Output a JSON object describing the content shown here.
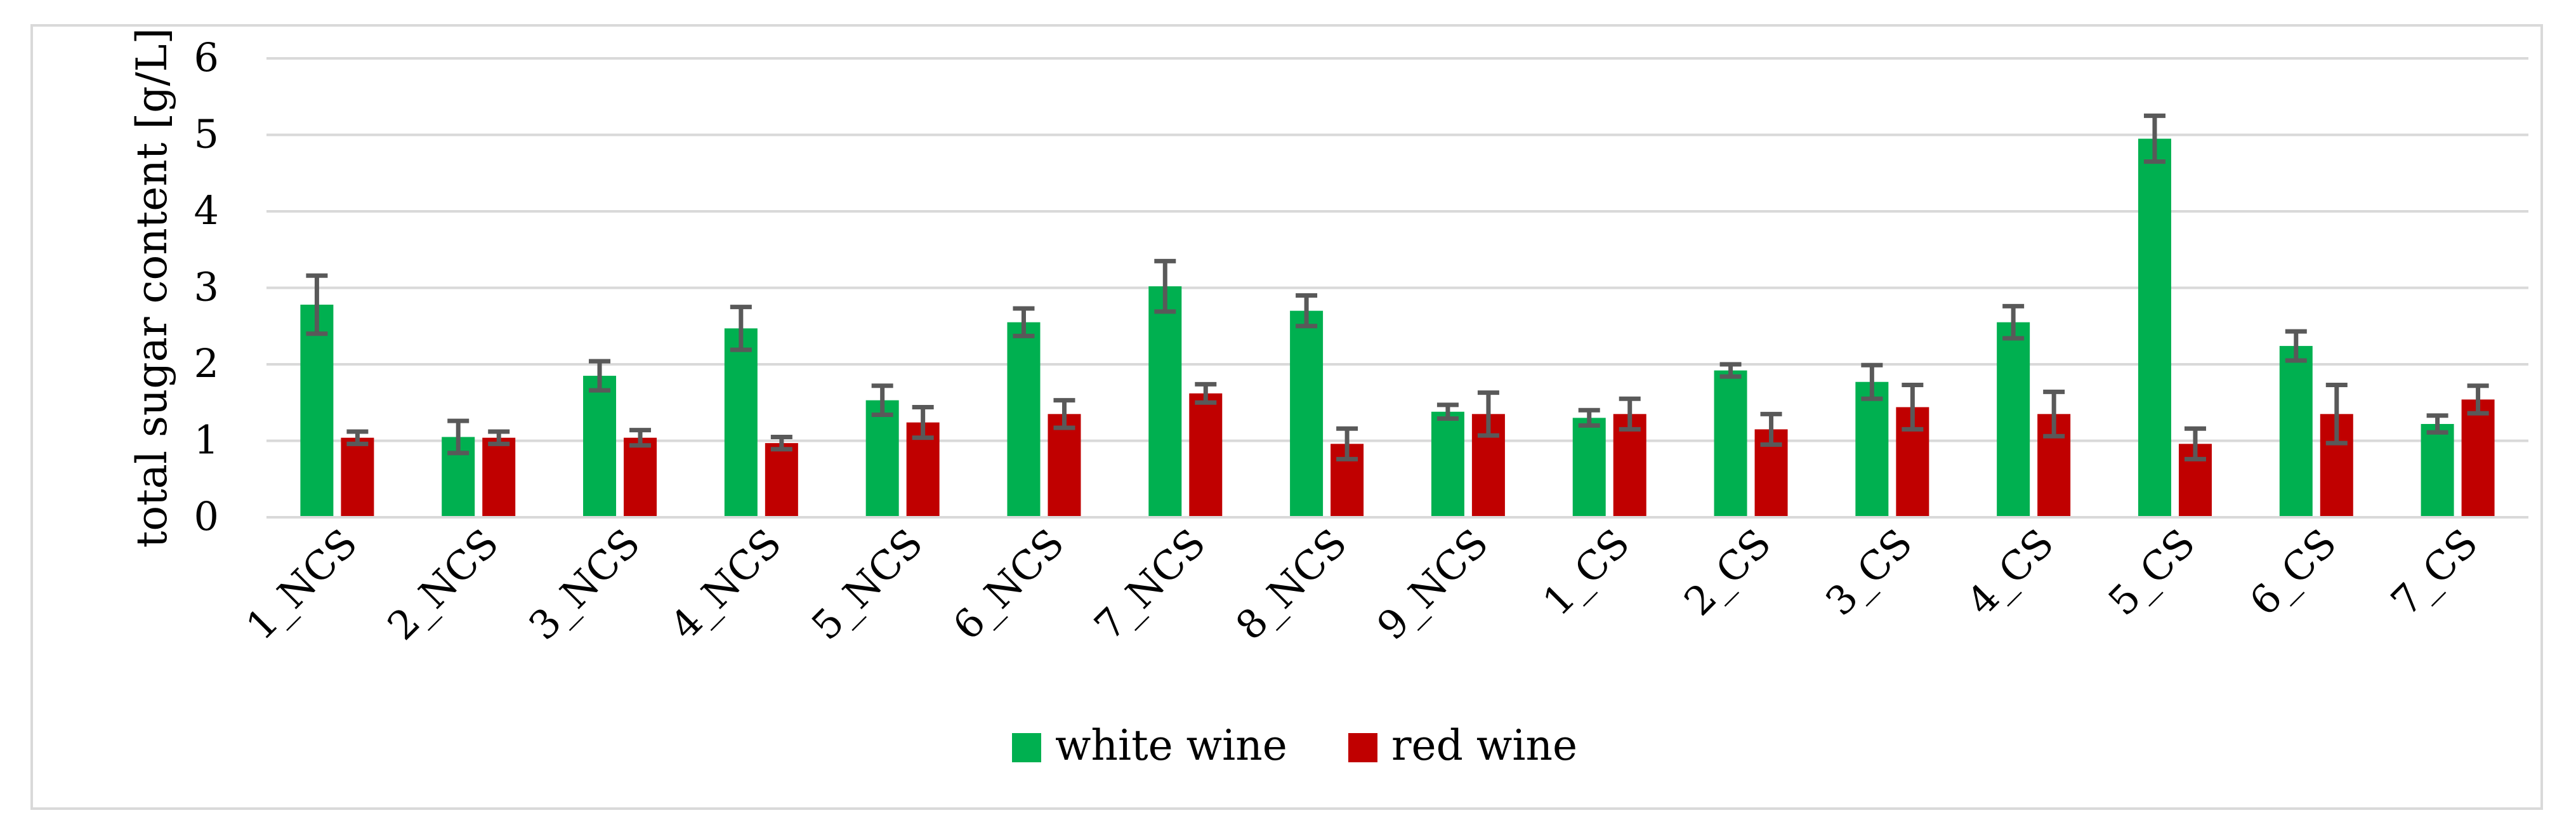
{
  "chart_data": {
    "type": "bar",
    "ylabel": "total sugar content [g/L]",
    "ylim": [
      0,
      6
    ],
    "yticks": [
      0,
      1,
      2,
      3,
      4,
      5,
      6
    ],
    "grid": true,
    "legend_position": "bottom",
    "categories": [
      "1_NCS",
      "2_NCS",
      "3_NCS",
      "4_NCS",
      "5_NCS",
      "6_NCS",
      "7_NCS",
      "8_NCS",
      "9_NCS",
      "1_CS",
      "2_CS",
      "3_CS",
      "4_CS",
      "5_CS",
      "6_CS",
      "7_CS"
    ],
    "series": [
      {
        "name": "white wine",
        "color": "#00b050",
        "values": [
          2.78,
          1.05,
          1.85,
          2.47,
          1.53,
          2.55,
          3.02,
          2.7,
          1.38,
          1.3,
          1.92,
          1.77,
          2.55,
          4.95,
          2.24,
          1.22
        ],
        "errors": [
          0.38,
          0.21,
          0.19,
          0.28,
          0.19,
          0.18,
          0.33,
          0.2,
          0.09,
          0.1,
          0.08,
          0.22,
          0.21,
          0.3,
          0.19,
          0.11
        ]
      },
      {
        "name": "red wine",
        "color": "#c00000",
        "values": [
          1.04,
          1.04,
          1.04,
          0.97,
          1.24,
          1.35,
          1.62,
          0.96,
          1.35,
          1.35,
          1.15,
          1.44,
          1.35,
          0.96,
          1.35,
          1.54
        ],
        "errors": [
          0.08,
          0.08,
          0.1,
          0.08,
          0.2,
          0.18,
          0.12,
          0.2,
          0.28,
          0.2,
          0.2,
          0.29,
          0.29,
          0.2,
          0.38,
          0.18
        ]
      }
    ]
  }
}
